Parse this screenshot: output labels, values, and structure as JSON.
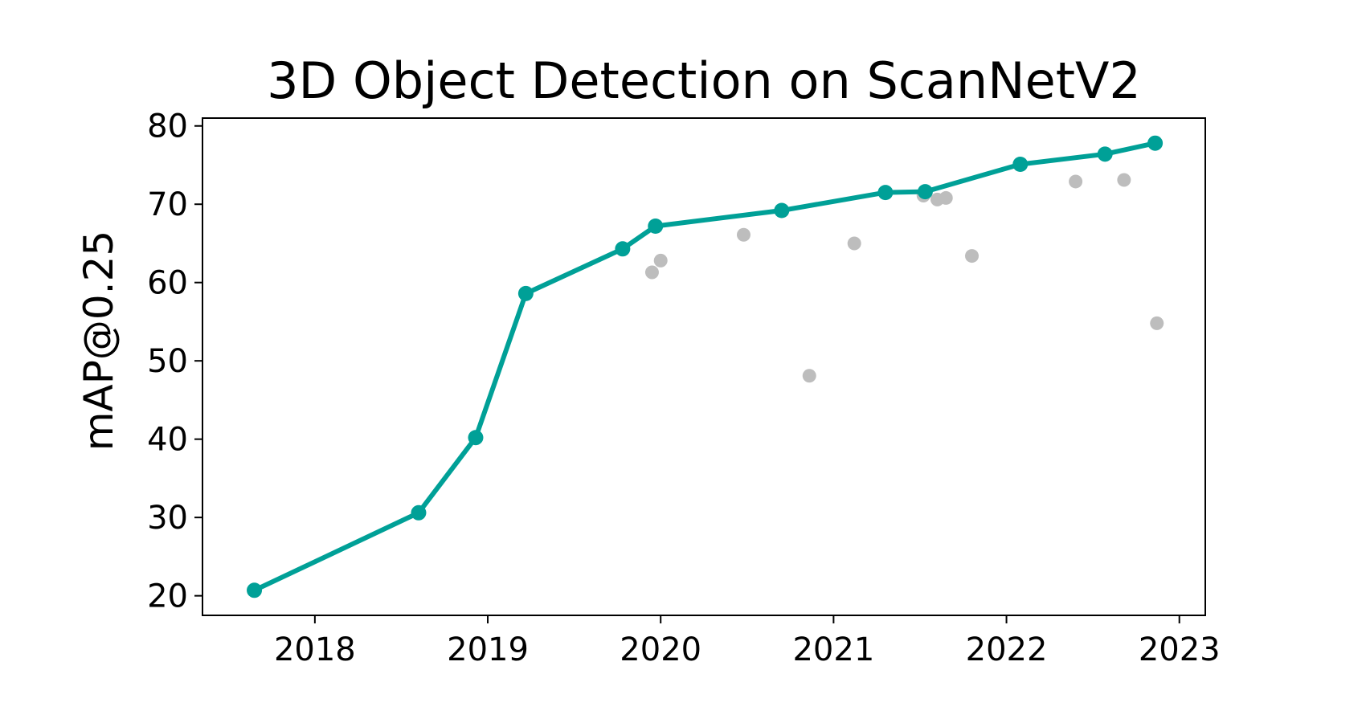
{
  "chart_data": {
    "type": "scatter",
    "title": "3D Object Detection on ScanNetV2",
    "xlabel": "",
    "ylabel": "mAP@0.25",
    "xlim": [
      2017.35,
      2023.15
    ],
    "ylim": [
      17.5,
      81.0
    ],
    "xticks": [
      2018,
      2019,
      2020,
      2021,
      2022,
      2023
    ],
    "yticks": [
      20,
      30,
      40,
      50,
      60,
      70,
      80
    ],
    "grid": false,
    "colors": {
      "sota": "#00a097",
      "other": "#bdbdbd"
    },
    "series": [
      {
        "style": "line-with-markers",
        "points": [
          {
            "x": 2017.65,
            "y": 20.7
          },
          {
            "x": 2018.6,
            "y": 30.6
          },
          {
            "x": 2018.93,
            "y": 40.2
          },
          {
            "x": 2019.22,
            "y": 58.6
          },
          {
            "x": 2019.78,
            "y": 64.3
          },
          {
            "x": 2019.97,
            "y": 67.2
          },
          {
            "x": 2020.7,
            "y": 69.2
          },
          {
            "x": 2021.3,
            "y": 71.5
          },
          {
            "x": 2021.53,
            "y": 71.6
          },
          {
            "x": 2022.08,
            "y": 75.1
          },
          {
            "x": 2022.57,
            "y": 76.4
          },
          {
            "x": 2022.86,
            "y": 77.8
          }
        ]
      },
      {
        "style": "markers",
        "points": [
          {
            "x": 2019.95,
            "y": 61.3
          },
          {
            "x": 2020.0,
            "y": 62.8
          },
          {
            "x": 2020.48,
            "y": 66.1
          },
          {
            "x": 2020.86,
            "y": 48.1
          },
          {
            "x": 2021.12,
            "y": 65.0
          },
          {
            "x": 2021.52,
            "y": 71.1
          },
          {
            "x": 2021.6,
            "y": 70.6
          },
          {
            "x": 2021.65,
            "y": 70.8
          },
          {
            "x": 2021.8,
            "y": 63.4
          },
          {
            "x": 2022.4,
            "y": 72.9
          },
          {
            "x": 2022.68,
            "y": 73.1
          },
          {
            "x": 2022.87,
            "y": 54.8
          }
        ]
      }
    ]
  }
}
